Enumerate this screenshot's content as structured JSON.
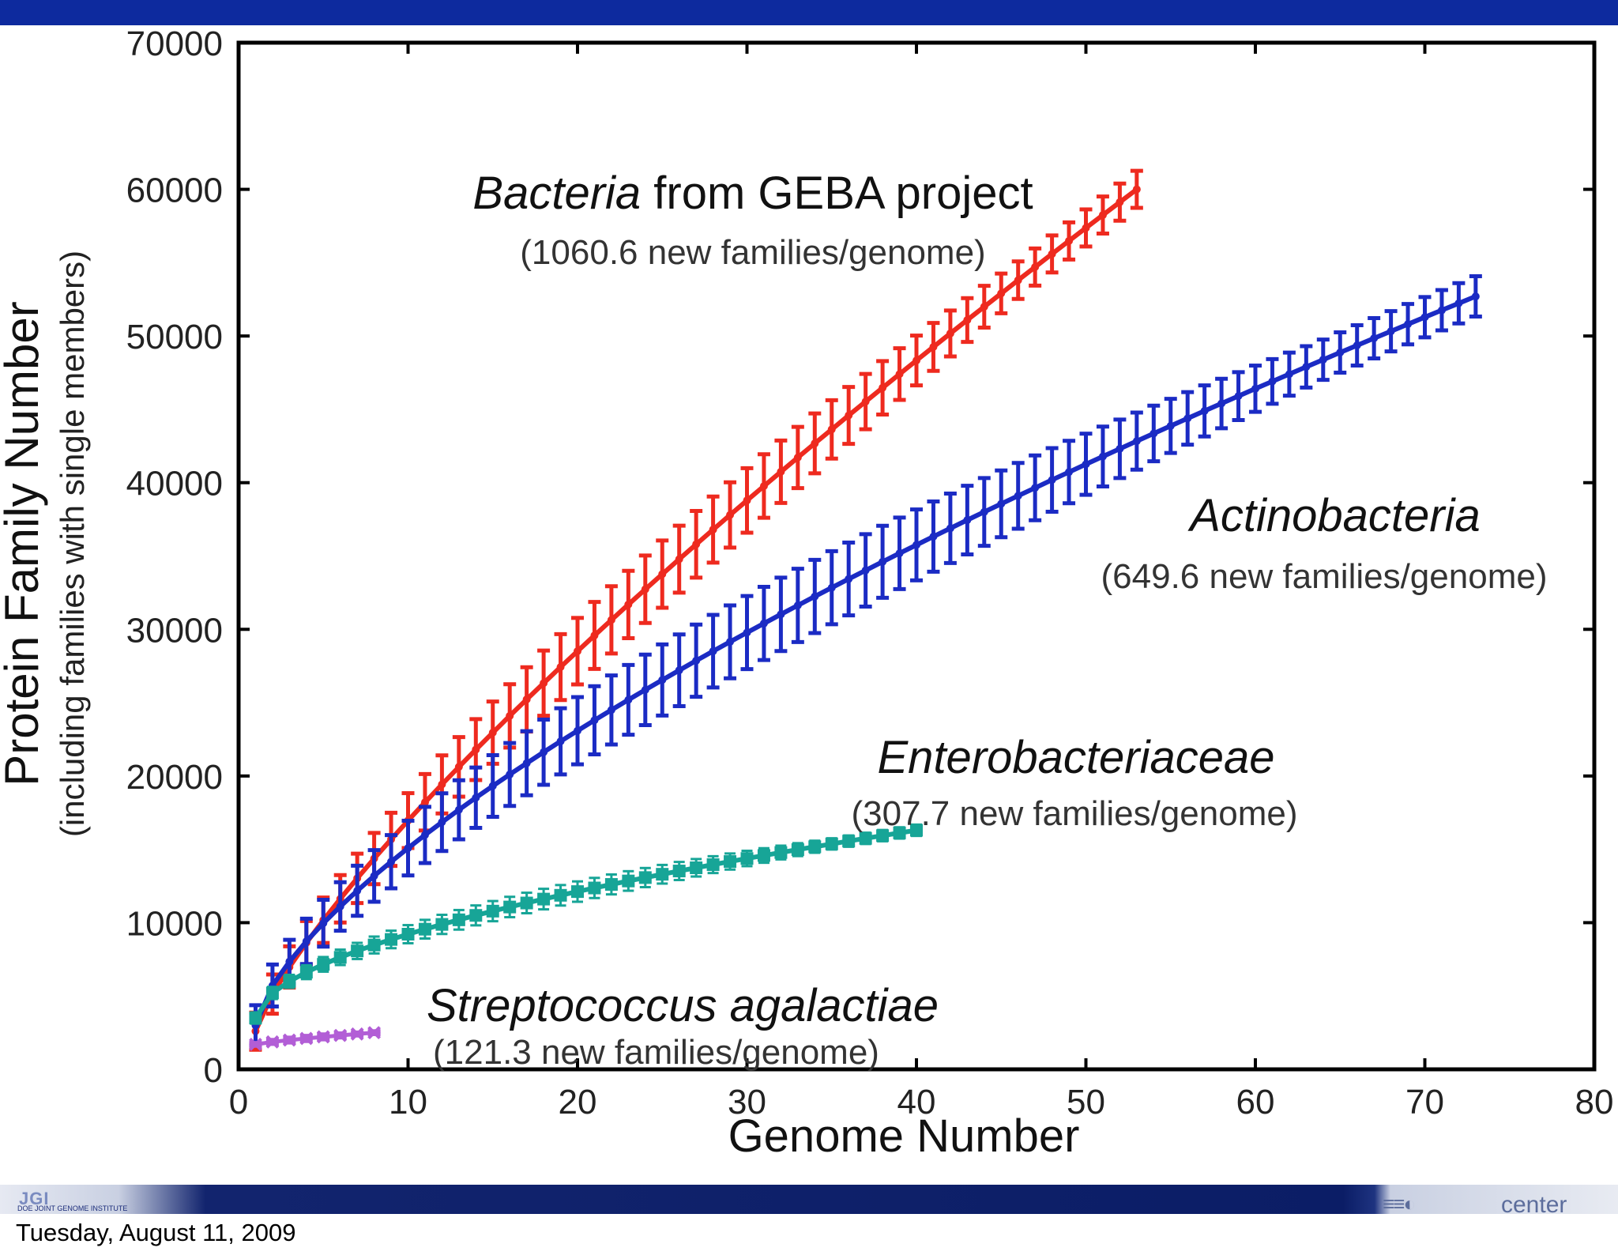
{
  "footer": {
    "date": "Tuesday, August 11, 2009",
    "logo_left_text": "JGI",
    "logo_left_caption": "DOE JOINT GENOME INSTITUTE",
    "logo_right_text": "center"
  },
  "colors": {
    "top_bar": "#0d2a9e",
    "bacteria": "#ee2a1f",
    "actinobacteria": "#1b2bc4",
    "enterobacteriaceae": "#17a597",
    "streptococcus": "#b25ed6"
  },
  "chart_data": {
    "type": "line",
    "title": "",
    "xlabel": "Genome Number",
    "ylabel": "Protein Family Number",
    "ylabel_sub": "(including families with single members)",
    "xlim": [
      0,
      80
    ],
    "ylim": [
      0,
      70000
    ],
    "xticks": [
      0,
      10,
      20,
      30,
      40,
      50,
      60,
      70,
      80
    ],
    "yticks": [
      0,
      10000,
      20000,
      30000,
      40000,
      50000,
      60000,
      70000
    ],
    "xtick_labels": [
      "0",
      "10",
      "20",
      "30",
      "40",
      "50",
      "60",
      "70",
      "80"
    ],
    "ytick_labels": [
      "0",
      "10000",
      "20000",
      "30000",
      "40000",
      "50000",
      "60000",
      "70000"
    ],
    "grid": false,
    "series": [
      {
        "key": "bacteria",
        "name_italic": "Bacteria",
        "name_rest": " from GEBA project",
        "rate_label": "(1060.6 new families/genome)",
        "n_start": 1,
        "n_end": 53,
        "y_start": 2600,
        "y_end": 60000,
        "exponent": 0.79,
        "err_max": 2300
      },
      {
        "key": "actinobacteria",
        "name_italic": "Actinobacteria",
        "name_rest": "",
        "rate_label": "(649.6 new families/genome)",
        "n_start": 1,
        "n_end": 73,
        "y_start": 3000,
        "y_end": 52700,
        "exponent": 0.68,
        "err_max": 2500
      },
      {
        "key": "enterobacteriaceae",
        "name_italic": "Enterobacteriaceae",
        "name_rest": "",
        "rate_label": "(307.7 new families/genome)",
        "n_start": 1,
        "n_end": 40,
        "y_start": 3500,
        "y_end": 16300,
        "exponent": 0.55,
        "err_max": 700
      },
      {
        "key": "streptococcus",
        "name_italic": "Streptococcus agalactiae",
        "name_rest": "",
        "rate_label": "(121.3 new families/genome)",
        "n_start": 1,
        "n_end": 8,
        "y_start": 1700,
        "y_end": 2500,
        "exponent": 0.8,
        "err_max": 180
      }
    ]
  }
}
